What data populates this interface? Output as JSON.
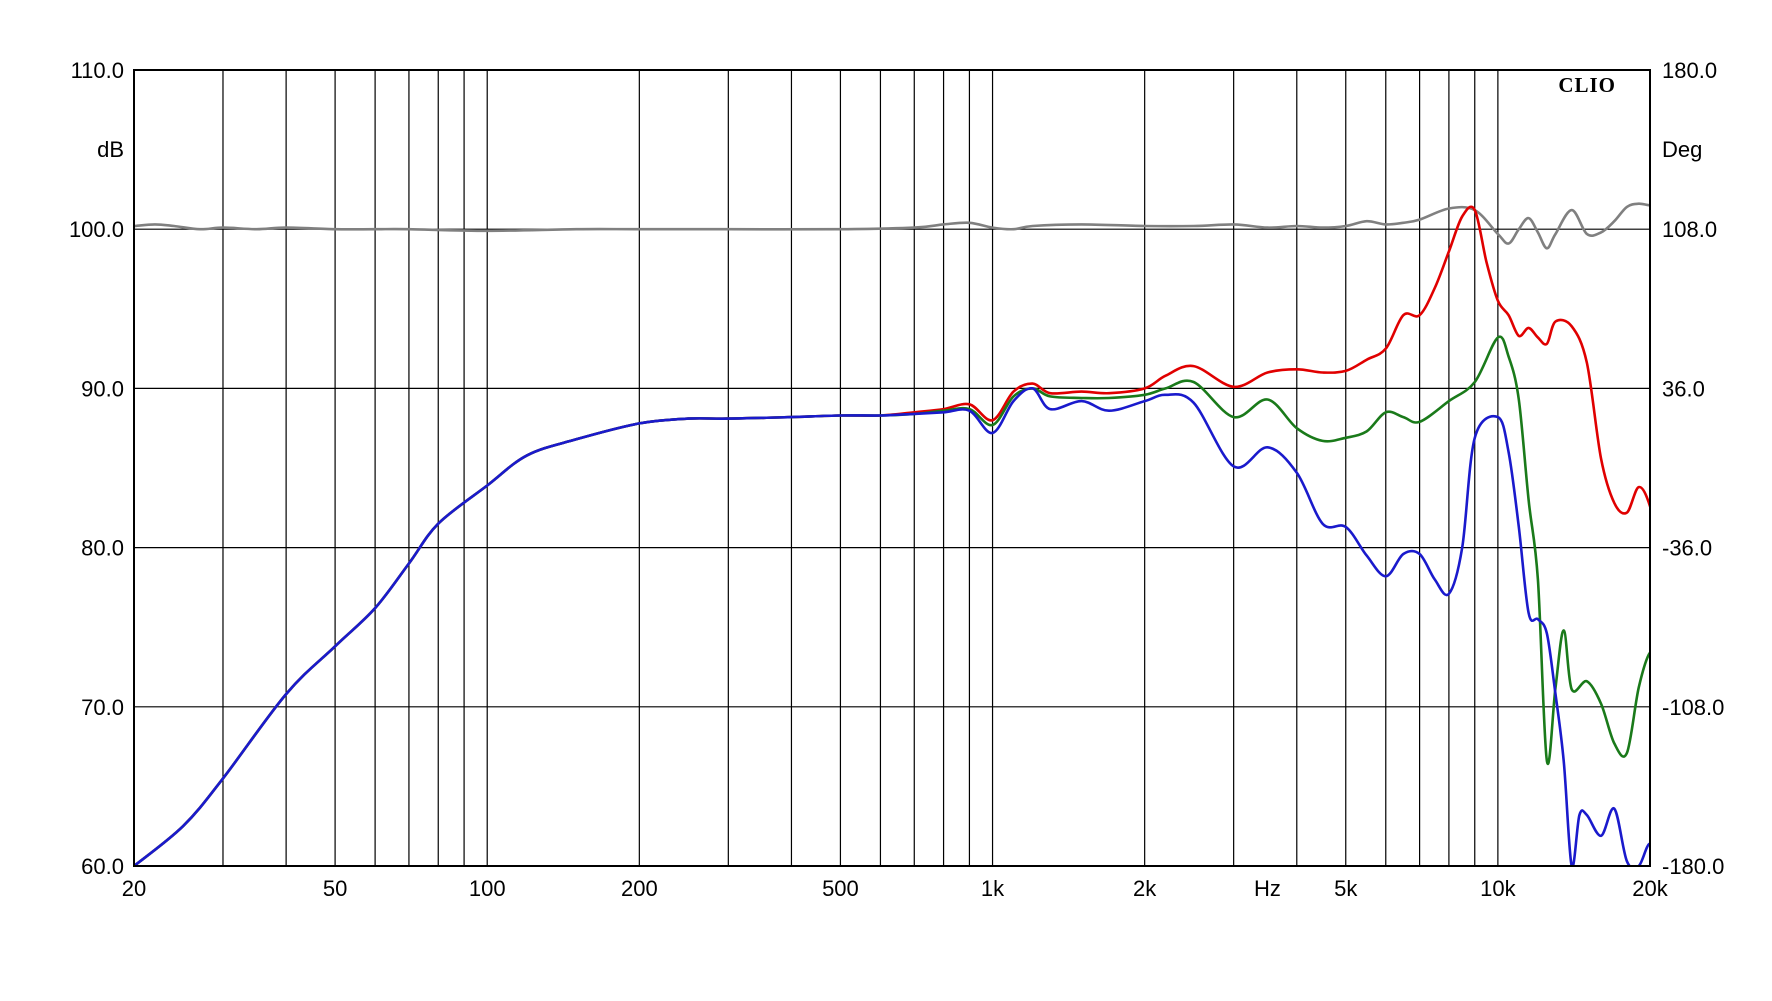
{
  "chart_data": {
    "type": "line",
    "brand": "CLIO",
    "xlabel": "Hz",
    "ylabel": "dB",
    "y2label": "Deg",
    "x_scale": "log",
    "xlim": [
      20,
      20000
    ],
    "ylim": [
      60,
      110
    ],
    "y2lim": [
      -180,
      180
    ],
    "grid": true,
    "x_ticks": [
      {
        "value": 20,
        "label": "20"
      },
      {
        "value": 50,
        "label": "50"
      },
      {
        "value": 100,
        "label": "100"
      },
      {
        "value": 200,
        "label": "200"
      },
      {
        "value": 500,
        "label": "500"
      },
      {
        "value": 1000,
        "label": "1k"
      },
      {
        "value": 2000,
        "label": "2k"
      },
      {
        "value": 5000,
        "label": "5k"
      },
      {
        "value": 10000,
        "label": "10k"
      },
      {
        "value": 20000,
        "label": "20k"
      }
    ],
    "y_ticks": [
      "60.0",
      "70.0",
      "80.0",
      "90.0",
      "100.0",
      "110.0"
    ],
    "y2_ticks": [
      "-180.0",
      "-108.0",
      "-36.0",
      "36.0",
      "108.0",
      "180.0"
    ],
    "series": [
      {
        "color": "#808080",
        "points": [
          [
            20,
            100.2
          ],
          [
            22,
            100.3
          ],
          [
            24,
            100.2
          ],
          [
            27,
            100
          ],
          [
            30,
            100.1
          ],
          [
            35,
            100
          ],
          [
            40,
            100.1
          ],
          [
            50,
            100
          ],
          [
            60,
            100
          ],
          [
            70,
            100
          ],
          [
            100,
            99.9
          ],
          [
            150,
            100
          ],
          [
            200,
            100
          ],
          [
            300,
            100
          ],
          [
            500,
            100
          ],
          [
            700,
            100.1
          ],
          [
            800,
            100.3
          ],
          [
            900,
            100.4
          ],
          [
            1000,
            100.1
          ],
          [
            1100,
            100
          ],
          [
            1200,
            100.2
          ],
          [
            1500,
            100.3
          ],
          [
            2000,
            100.2
          ],
          [
            2500,
            100.2
          ],
          [
            3000,
            100.3
          ],
          [
            3500,
            100.1
          ],
          [
            4000,
            100.2
          ],
          [
            4500,
            100.1
          ],
          [
            5000,
            100.2
          ],
          [
            5500,
            100.5
          ],
          [
            6000,
            100.3
          ],
          [
            6500,
            100.4
          ],
          [
            7000,
            100.6
          ],
          [
            8000,
            101.3
          ],
          [
            9000,
            101.2
          ],
          [
            10000,
            99.7
          ],
          [
            10500,
            99.1
          ],
          [
            11000,
            100
          ],
          [
            11500,
            100.7
          ],
          [
            12000,
            99.8
          ],
          [
            12500,
            98.8
          ],
          [
            13000,
            99.7
          ],
          [
            14000,
            101.2
          ],
          [
            15000,
            99.7
          ],
          [
            16000,
            99.8
          ],
          [
            17000,
            100.5
          ],
          [
            18000,
            101.4
          ],
          [
            19000,
            101.6
          ],
          [
            20000,
            101.5
          ],
          [
            21000,
            101.5
          ],
          [
            22000,
            100
          ]
        ]
      },
      {
        "color": "#e00000",
        "points": [
          [
            20,
            60
          ],
          [
            25,
            62.5
          ],
          [
            30,
            65.5
          ],
          [
            40,
            70.8
          ],
          [
            50,
            73.8
          ],
          [
            60,
            76.2
          ],
          [
            70,
            79
          ],
          [
            80,
            81.5
          ],
          [
            100,
            83.9
          ],
          [
            120,
            85.8
          ],
          [
            150,
            86.8
          ],
          [
            200,
            87.8
          ],
          [
            250,
            88.1
          ],
          [
            300,
            88.1
          ],
          [
            400,
            88.2
          ],
          [
            500,
            88.3
          ],
          [
            600,
            88.3
          ],
          [
            700,
            88.5
          ],
          [
            800,
            88.7
          ],
          [
            900,
            89
          ],
          [
            1000,
            88
          ],
          [
            1100,
            89.8
          ],
          [
            1200,
            90.3
          ],
          [
            1300,
            89.7
          ],
          [
            1500,
            89.8
          ],
          [
            1700,
            89.7
          ],
          [
            2000,
            90
          ],
          [
            2200,
            90.8
          ],
          [
            2500,
            91.4
          ],
          [
            3000,
            90.1
          ],
          [
            3500,
            91
          ],
          [
            4000,
            91.2
          ],
          [
            4500,
            91
          ],
          [
            5000,
            91.1
          ],
          [
            5500,
            91.8
          ],
          [
            6000,
            92.5
          ],
          [
            6500,
            94.6
          ],
          [
            7000,
            94.6
          ],
          [
            7500,
            96.3
          ],
          [
            8000,
            98.6
          ],
          [
            8500,
            100.8
          ],
          [
            9000,
            101.2
          ],
          [
            9500,
            97.9
          ],
          [
            10000,
            95.5
          ],
          [
            10500,
            94.6
          ],
          [
            11000,
            93.3
          ],
          [
            11500,
            93.8
          ],
          [
            12000,
            93.2
          ],
          [
            12500,
            92.8
          ],
          [
            13000,
            94.2
          ],
          [
            14000,
            93.9
          ],
          [
            15000,
            91.6
          ],
          [
            16000,
            85.6
          ],
          [
            17000,
            82.8
          ],
          [
            18000,
            82.2
          ],
          [
            19000,
            83.8
          ],
          [
            20000,
            82.6
          ],
          [
            21000,
            79.5
          ],
          [
            22000,
            78
          ]
        ]
      },
      {
        "color": "#1a7a1a",
        "points": [
          [
            20,
            60
          ],
          [
            25,
            62.5
          ],
          [
            30,
            65.5
          ],
          [
            40,
            70.8
          ],
          [
            50,
            73.8
          ],
          [
            60,
            76.2
          ],
          [
            70,
            79
          ],
          [
            80,
            81.5
          ],
          [
            100,
            83.9
          ],
          [
            120,
            85.8
          ],
          [
            150,
            86.8
          ],
          [
            200,
            87.8
          ],
          [
            250,
            88.1
          ],
          [
            300,
            88.1
          ],
          [
            400,
            88.2
          ],
          [
            500,
            88.3
          ],
          [
            600,
            88.3
          ],
          [
            700,
            88.4
          ],
          [
            800,
            88.6
          ],
          [
            900,
            88.7
          ],
          [
            1000,
            87.7
          ],
          [
            1100,
            89.5
          ],
          [
            1200,
            90
          ],
          [
            1300,
            89.5
          ],
          [
            1500,
            89.4
          ],
          [
            1700,
            89.4
          ],
          [
            2000,
            89.6
          ],
          [
            2200,
            90
          ],
          [
            2500,
            90.4
          ],
          [
            3000,
            88.2
          ],
          [
            3500,
            89.3
          ],
          [
            4000,
            87.5
          ],
          [
            4500,
            86.7
          ],
          [
            5000,
            86.9
          ],
          [
            5500,
            87.3
          ],
          [
            6000,
            88.5
          ],
          [
            6500,
            88.2
          ],
          [
            7000,
            87.9
          ],
          [
            8000,
            89.2
          ],
          [
            9000,
            90.4
          ],
          [
            10000,
            93.2
          ],
          [
            10500,
            92
          ],
          [
            11000,
            89.3
          ],
          [
            11500,
            83
          ],
          [
            12000,
            78
          ],
          [
            12500,
            66.6
          ],
          [
            13000,
            71.2
          ],
          [
            13500,
            74.8
          ],
          [
            14000,
            71.1
          ],
          [
            15000,
            71.6
          ],
          [
            16000,
            70.2
          ],
          [
            17000,
            67.7
          ],
          [
            18000,
            67.1
          ],
          [
            19000,
            71.2
          ],
          [
            20000,
            73.4
          ],
          [
            21000,
            73.1
          ],
          [
            22000,
            71.4
          ]
        ]
      },
      {
        "color": "#1a1acc",
        "points": [
          [
            20,
            60
          ],
          [
            25,
            62.5
          ],
          [
            30,
            65.5
          ],
          [
            40,
            70.8
          ],
          [
            50,
            73.8
          ],
          [
            60,
            76.2
          ],
          [
            70,
            79
          ],
          [
            80,
            81.5
          ],
          [
            100,
            83.9
          ],
          [
            120,
            85.8
          ],
          [
            150,
            86.8
          ],
          [
            200,
            87.8
          ],
          [
            250,
            88.1
          ],
          [
            300,
            88.1
          ],
          [
            400,
            88.2
          ],
          [
            500,
            88.3
          ],
          [
            600,
            88.3
          ],
          [
            700,
            88.4
          ],
          [
            800,
            88.5
          ],
          [
            900,
            88.6
          ],
          [
            1000,
            87.2
          ],
          [
            1100,
            89.2
          ],
          [
            1200,
            90
          ],
          [
            1300,
            88.7
          ],
          [
            1500,
            89.2
          ],
          [
            1700,
            88.6
          ],
          [
            2000,
            89.2
          ],
          [
            2200,
            89.6
          ],
          [
            2500,
            89.1
          ],
          [
            3000,
            85.1
          ],
          [
            3500,
            86.3
          ],
          [
            4000,
            84.7
          ],
          [
            4500,
            81.5
          ],
          [
            5000,
            81.3
          ],
          [
            5500,
            79.5
          ],
          [
            6000,
            78.2
          ],
          [
            6500,
            79.6
          ],
          [
            7000,
            79.6
          ],
          [
            7500,
            78
          ],
          [
            8000,
            77.1
          ],
          [
            8500,
            80
          ],
          [
            9000,
            86.9
          ],
          [
            10000,
            88.2
          ],
          [
            10500,
            86
          ],
          [
            11000,
            81.3
          ],
          [
            11500,
            75.9
          ],
          [
            12000,
            75.5
          ],
          [
            12500,
            74.6
          ],
          [
            13000,
            70.8
          ],
          [
            13500,
            66.6
          ],
          [
            14000,
            60
          ],
          [
            14500,
            63.2
          ],
          [
            15000,
            63.2
          ],
          [
            16000,
            61.9
          ],
          [
            17000,
            63.6
          ],
          [
            18000,
            60.3
          ],
          [
            19000,
            60
          ],
          [
            20000,
            61.4
          ],
          [
            21000,
            60
          ]
        ]
      }
    ]
  }
}
